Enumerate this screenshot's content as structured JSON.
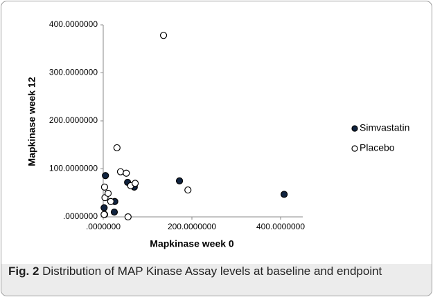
{
  "chart_data": {
    "type": "scatter",
    "xlabel": "Mapkinase week 0",
    "ylabel": "Mapkinase week 12",
    "xlim": [
      0,
      450
    ],
    "ylim": [
      0,
      400
    ],
    "xticks": [
      {
        "value": 0,
        "label": ".0000000"
      },
      {
        "value": 200,
        "label": "200.0000000"
      },
      {
        "value": 400,
        "label": "400.0000000"
      }
    ],
    "yticks": [
      {
        "value": 0,
        "label": ".0000000"
      },
      {
        "value": 100,
        "label": "100.0000000"
      },
      {
        "value": 200,
        "label": "200.0000000"
      },
      {
        "value": 300,
        "label": "300.0000000"
      },
      {
        "value": 400,
        "label": "400.0000000"
      }
    ],
    "legend": "right",
    "series": [
      {
        "name": "Simvastatin",
        "color": "#10233f",
        "edgecolor": "#000000",
        "x": [
          5,
          2,
          3,
          26,
          25,
          55,
          70,
          172,
          408
        ],
        "values": [
          86,
          19,
          5,
          32,
          10,
          72,
          62,
          75,
          47
        ]
      },
      {
        "name": "Placebo",
        "color": "#ffffff",
        "edgecolor": "#000000",
        "x": [
          136,
          31,
          39,
          52,
          62,
          72,
          191,
          3,
          4,
          11,
          17,
          2,
          56
        ],
        "values": [
          378,
          144,
          94,
          91,
          65,
          70,
          56,
          62,
          40,
          49,
          32,
          5,
          0
        ]
      }
    ]
  },
  "caption": {
    "label": "Fig. 2",
    "text": "Distribution of MAP Kinase Assay levels at baseline and endpoint"
  }
}
